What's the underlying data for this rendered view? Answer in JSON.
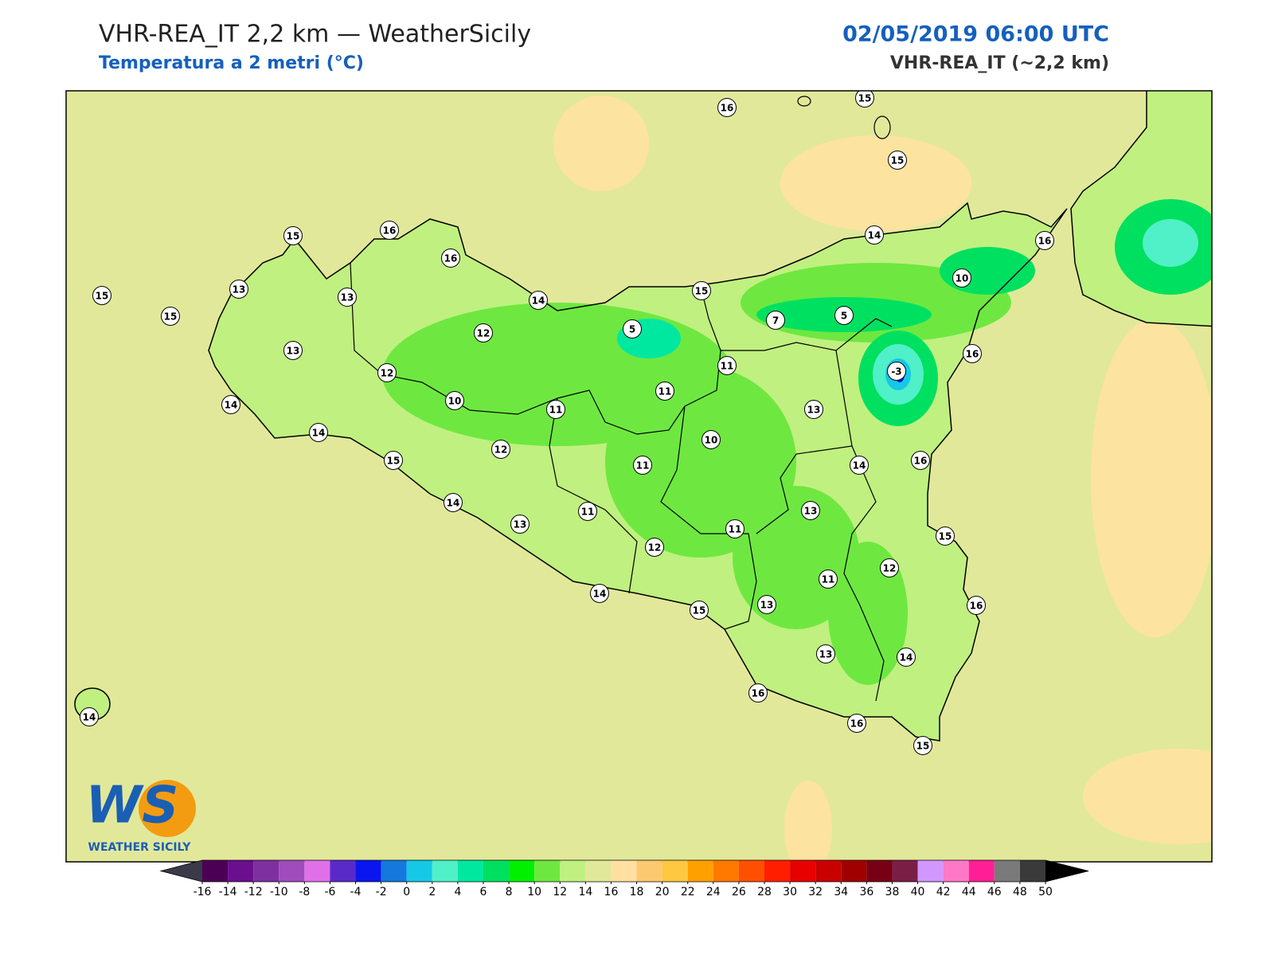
{
  "header": {
    "title": "VHR-REA_IT 2,2 km — WeatherSicily",
    "subtitle": "Temperatura a 2 metri (°C)",
    "datetime": "02/05/2019 06:00 UTC",
    "model": "VHR-REA_IT (~2,2 km)"
  },
  "stations": [
    16,
    15,
    15,
    15,
    16,
    16,
    14,
    16,
    15,
    13,
    13,
    15,
    14,
    15,
    10,
    12,
    5,
    7,
    5,
    13,
    12,
    11,
    -3,
    16,
    14,
    10,
    11,
    11,
    13,
    14,
    12,
    10,
    15,
    11,
    14,
    16,
    14,
    11,
    13,
    13,
    11,
    15,
    12,
    12,
    11,
    14,
    15,
    13,
    16,
    13,
    14,
    16,
    14,
    16,
    15
  ],
  "colorbar": {
    "ticks": [
      -16,
      -14,
      -12,
      -10,
      -8,
      -6,
      -4,
      -2,
      0,
      2,
      4,
      6,
      8,
      10,
      12,
      14,
      16,
      18,
      20,
      22,
      24,
      26,
      28,
      30,
      32,
      34,
      36,
      38,
      40,
      42,
      44,
      46,
      48,
      50
    ],
    "colors": [
      "#4b0055",
      "#6a0f8e",
      "#7e2fa0",
      "#a04cbd",
      "#e070e8",
      "#5a2ac8",
      "#0a16f0",
      "#1478dc",
      "#14c8e6",
      "#50f0c8",
      "#00e8a0",
      "#00e060",
      "#00f000",
      "#6ee840",
      "#c0f080",
      "#e2e89a",
      "#ffe0a0",
      "#fcc870",
      "#ffc840",
      "#ffa000",
      "#ff7800",
      "#ff5000",
      "#ff1e00",
      "#e60000",
      "#c80000",
      "#a00000",
      "#780014",
      "#7a1e46",
      "#d296ff",
      "#ff78c8",
      "#ff1e96",
      "#7a7a7a",
      "#3a3a3a"
    ],
    "under_color": "#3a3a4a",
    "over_color": "#000000"
  },
  "logo": {
    "mark": "WS",
    "name": "WEATHER SICILY"
  }
}
